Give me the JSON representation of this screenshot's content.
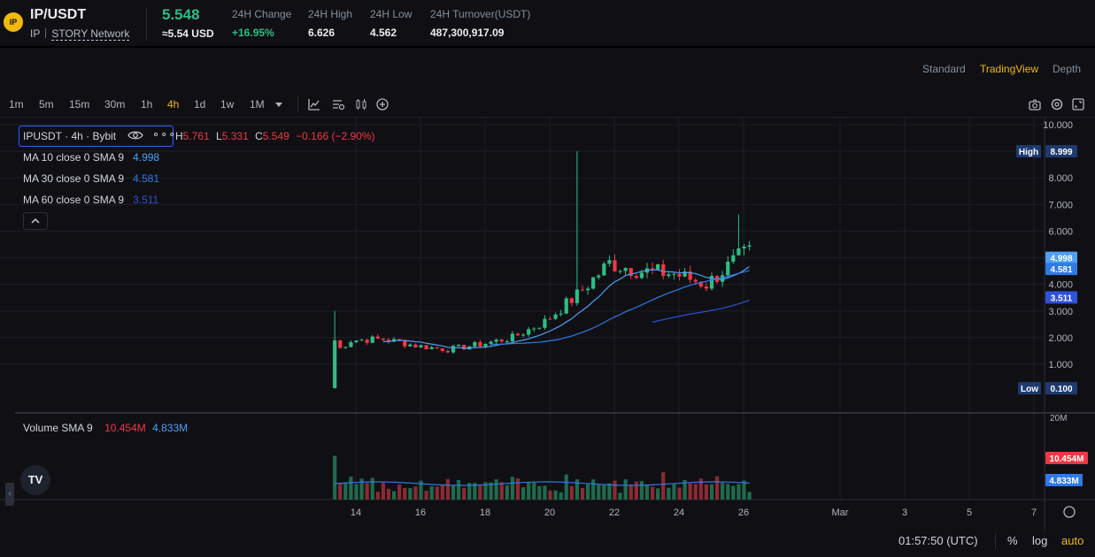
{
  "header": {
    "logo_text": "IP",
    "pair": "IP/USDT",
    "base": "IP",
    "network": "STORY Network",
    "last_price": "5.548",
    "price_usd": "≈5.54 USD",
    "stats": [
      {
        "label": "24H Change",
        "value": "+16.95%",
        "positive": true
      },
      {
        "label": "24H High",
        "value": "6.626"
      },
      {
        "label": "24H Low",
        "value": "4.562"
      },
      {
        "label": "24H Turnover(USDT)",
        "value": "487,300,917.09"
      }
    ]
  },
  "view_tabs": [
    {
      "label": "Standard",
      "active": false
    },
    {
      "label": "TradingView",
      "active": true
    },
    {
      "label": "Depth",
      "active": false
    }
  ],
  "timeframes": [
    {
      "label": "1m",
      "active": false
    },
    {
      "label": "5m",
      "active": false
    },
    {
      "label": "15m",
      "active": false
    },
    {
      "label": "30m",
      "active": false
    },
    {
      "label": "1h",
      "active": false
    },
    {
      "label": "4h",
      "active": true
    },
    {
      "label": "1d",
      "active": false
    },
    {
      "label": "1w",
      "active": false
    },
    {
      "label": "1M",
      "active": false
    }
  ],
  "toolbar_icons": [
    "chevron-down-icon",
    "line-chart-icon",
    "indicators-icon",
    "candles-icon",
    "add-icon",
    "camera-icon",
    "settings-icon",
    "fullscreen-icon"
  ],
  "legend": {
    "symbol": "IPUSDT · 4h · Bybit",
    "ohlc": {
      "h_label": "H",
      "h": "5.761",
      "l_label": "L",
      "l": "5.331",
      "c_label": "C",
      "c": "5.549",
      "change": "−0.166 (−2.90%)"
    },
    "ma": [
      {
        "label": "MA 10 close 0 SMA 9",
        "value": "4.998",
        "color": "#4f9ff5"
      },
      {
        "label": "MA 30 close 0 SMA 9",
        "value": "4.581",
        "color": "#2f7ae5"
      },
      {
        "label": "MA 60 close 0 SMA 9",
        "value": "3.511",
        "color": "#2f52d9"
      }
    ],
    "collapse_icon": "chevron-up-icon"
  },
  "volume_legend": {
    "label": "Volume SMA 9",
    "value1": "10.454M",
    "value2": "4.833M"
  },
  "price_axis": {
    "ticks": [
      "10.000",
      "9.000",
      "8.000",
      "7.000",
      "6.000",
      "5.000",
      "4.000",
      "3.000",
      "2.000",
      "1.000"
    ],
    "high_label": "High",
    "high_value": "8.999",
    "low_label": "Low",
    "low_value": "0.100",
    "ma_tags": [
      "4.998",
      "4.581",
      "3.511"
    ]
  },
  "volume_axis": {
    "top_tick": "20M",
    "tag1": "10.454M",
    "tag2": "4.833M"
  },
  "time_axis": [
    "14",
    "16",
    "18",
    "20",
    "22",
    "24",
    "26",
    "Mar",
    "3",
    "5",
    "7"
  ],
  "bottom_bar": {
    "clock": "01:57:50 (UTC)",
    "percent": "%",
    "log": "log",
    "auto": "auto"
  },
  "colors": {
    "up": "#2ebd85",
    "down": "#f23645",
    "accent": "#f0b90b",
    "volume_up": "#1f6b4d",
    "volume_down": "#8c2a33"
  },
  "chart_data": {
    "type": "candlestick",
    "interval": "4h",
    "x": [
      "Feb 13",
      "Feb 14",
      "Feb 15",
      "Feb 16",
      "Feb 17",
      "Feb 18",
      "Feb 19",
      "Feb 20",
      "Feb 21",
      "Feb 22",
      "Feb 23",
      "Feb 24",
      "Feb 25",
      "Feb 26"
    ],
    "close_by_day": [
      1.9,
      1.95,
      1.7,
      1.55,
      1.75,
      2.0,
      2.6,
      3.6,
      4.8,
      4.5,
      4.4,
      4.0,
      5.0,
      5.55
    ],
    "ylim": [
      0,
      10
    ],
    "high": 8.999,
    "low": 0.1,
    "volume_ylim": [
      0,
      20000000
    ]
  }
}
